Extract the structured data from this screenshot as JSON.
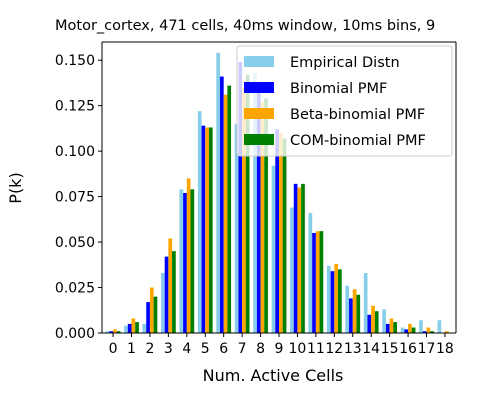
{
  "chart_data": {
    "type": "bar",
    "title": "Motor_cortex, 471 cells, 40ms window, 10ms bins, 9",
    "xlabel": "Num. Active Cells",
    "ylabel": "P(k)",
    "categories": [
      "0",
      "1",
      "2",
      "3",
      "4",
      "5",
      "6",
      "7",
      "8",
      "9",
      "10",
      "11",
      "12",
      "13",
      "14",
      "15",
      "16",
      "17",
      "18"
    ],
    "ylim": [
      0,
      0.16
    ],
    "yticks": [
      "0.000",
      "0.025",
      "0.050",
      "0.075",
      "0.100",
      "0.125",
      "0.150"
    ],
    "grid": false,
    "legend_position": "top-right",
    "series": [
      {
        "name": "Empirical Distn",
        "color": "#87ceeb",
        "values": [
          0.001,
          0.004,
          0.005,
          0.033,
          0.079,
          0.122,
          0.154,
          0.115,
          0.143,
          0.092,
          0.069,
          0.066,
          0.037,
          0.026,
          0.033,
          0.013,
          0.003,
          0.007,
          0.007
        ]
      },
      {
        "name": "Binomial PMF",
        "color": "#0000ff",
        "values": [
          0.001,
          0.005,
          0.017,
          0.042,
          0.077,
          0.114,
          0.141,
          0.149,
          0.133,
          0.112,
          0.082,
          0.055,
          0.034,
          0.019,
          0.01,
          0.005,
          0.002,
          0.001,
          0.0
        ]
      },
      {
        "name": "Beta-binomial PMF",
        "color": "#ffa500",
        "values": [
          0.002,
          0.008,
          0.025,
          0.052,
          0.085,
          0.113,
          0.131,
          0.135,
          0.127,
          0.11,
          0.08,
          0.056,
          0.038,
          0.024,
          0.015,
          0.008,
          0.005,
          0.003,
          0.001
        ]
      },
      {
        "name": "COM-binomial PMF",
        "color": "#008000",
        "values": [
          0.001,
          0.006,
          0.02,
          0.045,
          0.079,
          0.113,
          0.136,
          0.142,
          0.129,
          0.107,
          0.082,
          0.056,
          0.035,
          0.021,
          0.012,
          0.006,
          0.003,
          0.001,
          0.0
        ]
      }
    ]
  }
}
